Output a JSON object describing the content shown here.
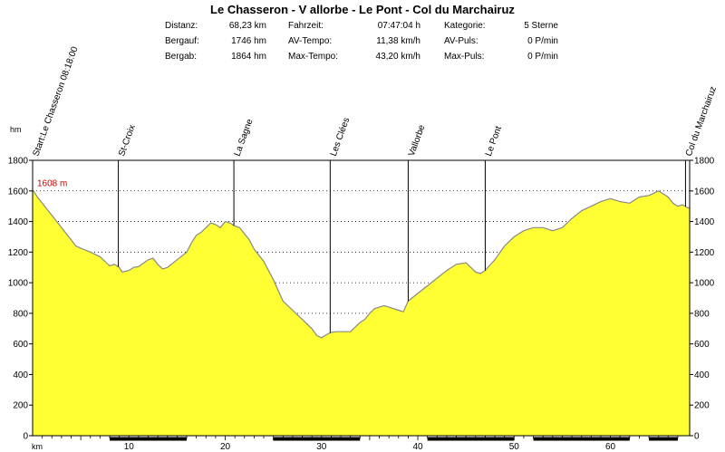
{
  "title": "Le Chasseron - V allorbe - Le Pont - Col du Marchairuz",
  "stats": [
    {
      "label": "Distanz:",
      "value": "68,23 km"
    },
    {
      "label": "Bergauf:",
      "value": "1746 hm"
    },
    {
      "label": "Bergab:",
      "value": "1864 hm"
    },
    {
      "label": "Fahrzeit:",
      "value": "07:47:04 h"
    },
    {
      "label": "AV-Tempo:",
      "value": "11,38 km/h"
    },
    {
      "label": "Max-Tempo:",
      "value": "43,20 km/h"
    },
    {
      "label": "Kategorie:",
      "value": "5 Sterne"
    },
    {
      "label": "AV-Puls:",
      "value": "0 P/min"
    },
    {
      "label": "Max-Puls:",
      "value": "0 P/min"
    }
  ],
  "colors": {
    "fill": "#ffff33",
    "line": "#888888",
    "marker_label": "#cc0000"
  },
  "chart_data": {
    "type": "area",
    "xlabel": "km",
    "ylabel": "hm",
    "xlim": [
      0,
      68.23
    ],
    "ylim": [
      0,
      1800
    ],
    "x_ticks": [
      10,
      20,
      30,
      40,
      50,
      60
    ],
    "y_ticks": [
      0,
      200,
      400,
      600,
      800,
      1000,
      1200,
      1400,
      1600,
      1800
    ],
    "grid": true,
    "max_label": {
      "x": 0,
      "y": 1608,
      "text": "1608 m"
    },
    "waypoints": [
      {
        "name": "Start:Le Chasseron 08:18:00",
        "x": 0
      },
      {
        "name": "St-Croix",
        "x": 8.9
      },
      {
        "name": "La Sagne",
        "x": 20.9
      },
      {
        "name": "Les Clées",
        "x": 30.9
      },
      {
        "name": "Vallorbe",
        "x": 39.0
      },
      {
        "name": "Le Pont",
        "x": 47.0
      },
      {
        "name": "Col du Marchairuz",
        "x": 67.8
      }
    ],
    "series": [
      {
        "x": [
          0,
          0.5,
          1,
          1.5,
          2,
          3,
          4,
          4.5,
          5,
          6,
          7,
          7.5,
          8,
          8.5,
          9,
          9.3,
          10,
          10.5,
          11,
          12,
          12.5,
          13,
          13.5,
          14,
          15,
          16,
          16.5,
          17,
          17.5,
          18,
          18.5,
          19,
          19.5,
          20,
          20.5,
          21,
          21.5,
          22,
          22.5,
          23,
          24,
          25,
          26,
          27,
          28,
          29,
          29.5,
          30,
          30.5,
          31,
          31.5,
          32,
          33,
          34,
          34.5,
          35,
          35.5,
          36,
          36.5,
          37,
          38,
          38.5,
          39,
          40,
          41,
          42,
          43,
          44,
          45,
          45.5,
          46,
          46.5,
          47,
          48,
          49,
          50,
          51,
          52,
          53,
          54,
          55,
          56,
          57,
          58,
          59,
          60,
          61,
          62,
          63,
          64,
          65,
          66,
          66.5,
          67,
          67.5,
          68,
          68.23
        ],
        "y": [
          1608,
          1560,
          1520,
          1480,
          1440,
          1360,
          1280,
          1240,
          1225,
          1200,
          1170,
          1140,
          1110,
          1120,
          1100,
          1070,
          1080,
          1100,
          1105,
          1150,
          1160,
          1120,
          1090,
          1100,
          1150,
          1200,
          1260,
          1310,
          1330,
          1360,
          1390,
          1380,
          1360,
          1400,
          1390,
          1370,
          1360,
          1320,
          1280,
          1220,
          1140,
          1020,
          880,
          820,
          760,
          700,
          655,
          640,
          660,
          675,
          680,
          680,
          680,
          740,
          760,
          800,
          830,
          840,
          850,
          840,
          820,
          810,
          880,
          930,
          980,
          1030,
          1080,
          1120,
          1130,
          1100,
          1070,
          1060,
          1080,
          1150,
          1240,
          1300,
          1340,
          1360,
          1360,
          1340,
          1360,
          1420,
          1470,
          1500,
          1530,
          1550,
          1530,
          1520,
          1560,
          1570,
          1600,
          1560,
          1520,
          1500,
          1510,
          1490,
          1490
        ]
      }
    ]
  }
}
